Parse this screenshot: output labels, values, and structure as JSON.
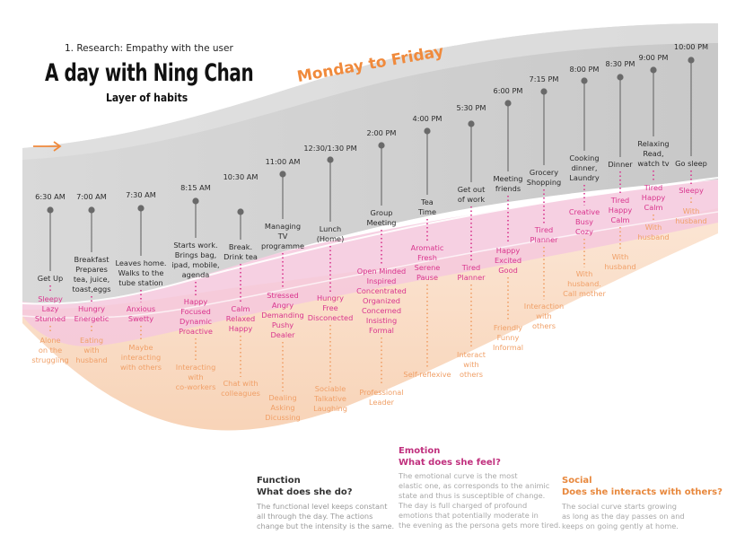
{
  "header": {
    "subtitle": "1. Research: Empathy with the user",
    "title": "A day with Ning Chan",
    "layer": "Layer of habits",
    "period": "Monday to Friday"
  },
  "timeline": [
    {
      "time": "6:30 AM",
      "activity": "Get Up",
      "emotion": "Sleepy\nLazy\nStunned",
      "social": "Alone\non the\nstruggling"
    },
    {
      "time": "7:00 AM",
      "activity": "Breakfast\nPrepares\ntea, juice,\ntoast,eggs",
      "emotion": "Hungry\nEnergetic",
      "social": "Eating\nwith\nhusband"
    },
    {
      "time": "7:30 AM",
      "activity": "Leaves home.\nWalks to the\ntube station",
      "emotion": "Anxious\nSwetty",
      "social": "Maybe\ninteracting\nwith others"
    },
    {
      "time": "8:15 AM",
      "activity": "Starts work.\nBrings bag,\nipad, mobile,\nagenda",
      "emotion": "Happy\nFocused\nDynamic\nProactive",
      "social": "Interacting\nwith\nco-workers"
    },
    {
      "time": "10:30 AM",
      "activity": "Break.\nDrink tea",
      "emotion": "Calm\nRelaxed\nHappy",
      "social": "Chat with\ncolleagues"
    },
    {
      "time": "11:00 AM",
      "activity": "Managing\nTV\nprogramme",
      "emotion": "Stressed\nAngry\nDemanding\nPushy\nDealer",
      "social": "Dealing\nAsking\nDicussing"
    },
    {
      "time": "12:30/1:30 PM",
      "activity": "Lunch\n(Home)",
      "emotion": "Hungry\nFree\nDisconected",
      "social": "Sociable\nTalkative\nLaughing"
    },
    {
      "time": "2:00 PM",
      "activity": "Group\nMeeting",
      "emotion": "Open Minded\nInspired\nConcentrated\nOrganized\nConcerned\nInsisting\nFormal",
      "social": "Professional\nLeader"
    },
    {
      "time": "4:00 PM",
      "activity": "Tea\nTime",
      "emotion": "Aromatic\nFresh\nSerene\nPause",
      "social": "Self-reflexive"
    },
    {
      "time": "5:30 PM",
      "activity": "Get out\nof work",
      "emotion": "Tired\nPlanner",
      "social": "Interact\nwith\nothers"
    },
    {
      "time": "6:00 PM",
      "activity": "Meeting\nfriends",
      "emotion": "Happy\nExcited\nGood",
      "social": "Friendly\nFunny\nInformal"
    },
    {
      "time": "7:15 PM",
      "activity": "Grocery\nShopping",
      "emotion": "Tired\nPlanner",
      "social": "Interaction\nwith\nothers"
    },
    {
      "time": "8:00 PM",
      "activity": "Cooking\ndinner,\nLaundry",
      "emotion": "Creative\nBusy\nCozy",
      "social": "With\nhusband.\nCall mother"
    },
    {
      "time": "8:30 PM",
      "activity": "Dinner",
      "emotion": "Tired\nHappy\nCalm",
      "social": "With\nhusband"
    },
    {
      "time": "9:00 PM",
      "activity": "Relaxing\nRead,\nwatch tv",
      "emotion": "Tired\nHappy\nCalm",
      "social": "With\nhusband"
    },
    {
      "time": "10:00 PM",
      "activity": "Go sleep",
      "emotion": "Sleepy",
      "social": "With\nhusband"
    }
  ],
  "legend": {
    "function": {
      "title": "Function",
      "question": "What does she do?",
      "text": "The functional level keeps constant\nall through the day. The actions\nchange but the intensity is the same."
    },
    "emotion": {
      "title": "Emotion",
      "question": "What does she feel?",
      "text": "The emotional curve is the most\nelastic one, as corresponds to the animic\nstate and thus is susceptible of change.\nThe day is full charged of profound\nemotions that potentially moderate in\nthe evening as the persona gets more tired."
    },
    "social": {
      "title": "Social",
      "question": "Does she interacts with others?",
      "text": "The social curve starts growing\nas long as the day passes on and\nkeeps on going gently at home."
    }
  },
  "colors": {
    "function_band": "#cfcfcf",
    "emotion_band": "#f3c6dc",
    "social_band": "#fadbc3",
    "emotion_text": "#d9358e",
    "social_text": "#f0a068",
    "accent_orange": "#f08a3c"
  }
}
